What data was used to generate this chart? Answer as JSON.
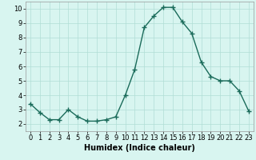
{
  "x": [
    0,
    1,
    2,
    3,
    4,
    5,
    6,
    7,
    8,
    9,
    10,
    11,
    12,
    13,
    14,
    15,
    16,
    17,
    18,
    19,
    20,
    21,
    22,
    23
  ],
  "y": [
    3.4,
    2.8,
    2.3,
    2.3,
    3.0,
    2.5,
    2.2,
    2.2,
    2.3,
    2.5,
    4.0,
    5.8,
    8.7,
    9.5,
    10.1,
    10.1,
    9.1,
    8.3,
    6.3,
    5.3,
    5.0,
    5.0,
    4.3,
    2.9
  ],
  "line_color": "#1a6b5a",
  "marker": "+",
  "markersize": 4,
  "linewidth": 1.0,
  "bg_color": "#d8f5f0",
  "grid_color": "#b0ddd5",
  "xlabel": "Humidex (Indice chaleur)",
  "xlim": [
    -0.5,
    23.5
  ],
  "ylim": [
    1.5,
    10.5
  ],
  "yticks": [
    2,
    3,
    4,
    5,
    6,
    7,
    8,
    9,
    10
  ],
  "xticks": [
    0,
    1,
    2,
    3,
    4,
    5,
    6,
    7,
    8,
    9,
    10,
    11,
    12,
    13,
    14,
    15,
    16,
    17,
    18,
    19,
    20,
    21,
    22,
    23
  ],
  "xtick_labels": [
    "0",
    "1",
    "2",
    "3",
    "4",
    "5",
    "6",
    "7",
    "8",
    "9",
    "10",
    "11",
    "12",
    "13",
    "14",
    "15",
    "16",
    "17",
    "18",
    "19",
    "20",
    "21",
    "22",
    "23"
  ],
  "xlabel_fontsize": 7,
  "tick_fontsize": 6
}
